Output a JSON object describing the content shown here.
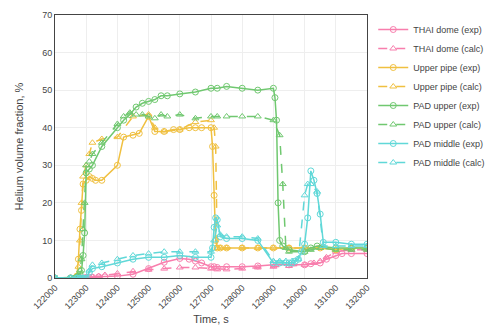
{
  "chart_data": {
    "type": "line",
    "xlabel": "Time, s",
    "ylabel": "Helium volume fraction, %",
    "xlim": [
      122000,
      132000
    ],
    "ylim": [
      0,
      70
    ],
    "xticks": [
      122000,
      123000,
      124000,
      125000,
      126000,
      127000,
      128000,
      129000,
      130000,
      131000,
      132000
    ],
    "yticks": [
      0,
      10,
      20,
      30,
      40,
      50,
      60,
      70
    ],
    "grid": true,
    "legend": "upper right",
    "series": [
      {
        "name": "THAI dome (exp)",
        "color": "#f87ead",
        "line_style": "solid",
        "marker": "circle",
        "x": [
          122000,
          122500,
          122700,
          122850,
          122950,
          123000,
          123100,
          123200,
          123400,
          123600,
          124000,
          124500,
          125000,
          125500,
          126000,
          126300,
          126500,
          126700,
          127000,
          127100,
          127200,
          127500,
          128000,
          128500,
          129000,
          129500,
          130000,
          130200,
          130500,
          130700,
          131000,
          131200,
          131500,
          132000
        ],
        "values": [
          0,
          0,
          0,
          0,
          0,
          0.1,
          0.15,
          0.2,
          0.3,
          0.3,
          0.5,
          1.0,
          2.5,
          4.2,
          5.2,
          5.0,
          4.5,
          4.0,
          3.0,
          3.0,
          2.8,
          3.0,
          3.0,
          3.2,
          3.5,
          3.5,
          3.5,
          3.8,
          4.0,
          5.0,
          6.0,
          6.5,
          6.5,
          6.5
        ]
      },
      {
        "name": "THAI dome (calc)",
        "color": "#f87ead",
        "line_style": "dashed",
        "marker": "triangle-up",
        "x": [
          122000,
          122500,
          122800,
          123000,
          123200,
          123400,
          123600,
          124000,
          124500,
          125000,
          125500,
          126000,
          126500,
          127000,
          127200,
          127500,
          128000,
          128500,
          129000,
          129500,
          130000,
          130300,
          130500,
          130700,
          131000,
          131500,
          132000
        ],
        "values": [
          0,
          0,
          0,
          0.1,
          0.3,
          0.5,
          0.8,
          1.2,
          1.8,
          2.2,
          2.5,
          2.8,
          2.8,
          2.5,
          2.3,
          2.3,
          2.5,
          2.8,
          3.0,
          3.2,
          3.5,
          4.0,
          4.5,
          5.5,
          7.0,
          7.5,
          7.5
        ]
      },
      {
        "name": "Upper pipe (exp)",
        "color": "#f0c040",
        "line_style": "solid",
        "marker": "circle",
        "x": [
          122000,
          122500,
          122650,
          122700,
          122750,
          122800,
          122850,
          122900,
          123000,
          123100,
          123200,
          123300,
          123500,
          124000,
          124200,
          124500,
          124700,
          125000,
          125200,
          125500,
          125800,
          126000,
          126300,
          126500,
          126700,
          127000,
          127050,
          127100,
          127150,
          127200,
          127300,
          127500,
          128000,
          128500,
          129000,
          129500,
          130000,
          130500,
          131000,
          131500,
          132000
        ],
        "values": [
          0,
          0,
          0,
          0.5,
          5.0,
          13.0,
          18.0,
          25.0,
          26.0,
          27.0,
          26.5,
          26.0,
          26.0,
          30.0,
          37.5,
          38.0,
          38.5,
          43.0,
          39.0,
          39.0,
          39.5,
          39.5,
          40.0,
          40.0,
          40.0,
          40.0,
          35.0,
          22.0,
          10.0,
          8.0,
          8.0,
          8.0,
          8.0,
          8.0,
          8.0,
          8.0,
          8.0,
          8.0,
          7.5,
          8.0,
          8.0
        ]
      },
      {
        "name": "Upper pipe (calc)",
        "color": "#f0c040",
        "line_style": "dashed",
        "marker": "triangle-up",
        "x": [
          122000,
          122500,
          122650,
          122700,
          122750,
          122800,
          122850,
          122900,
          123000,
          123100,
          123200,
          123500,
          124000,
          124500,
          125000,
          125200,
          125500,
          126000,
          126500,
          127000,
          127100,
          127150,
          127200,
          127300,
          127500,
          128000,
          128500,
          129000,
          129500,
          130000,
          130500,
          131000,
          131500,
          132000
        ],
        "values": [
          0,
          0,
          0,
          0.3,
          3.0,
          10.0,
          20.0,
          27.0,
          30.0,
          33.0,
          36.0,
          37.0,
          37.5,
          43.0,
          43.5,
          40.0,
          39.0,
          39.5,
          41.5,
          42.0,
          40.0,
          35.0,
          8.0,
          8.0,
          8.0,
          8.0,
          8.0,
          8.0,
          8.0,
          8.0,
          8.0,
          7.5,
          8.0,
          8.0
        ]
      },
      {
        "name": "PAD upper (exp)",
        "color": "#70c870",
        "line_style": "solid",
        "marker": "circle",
        "x": [
          122000,
          122500,
          122650,
          122700,
          122750,
          122800,
          122850,
          122900,
          122950,
          123000,
          123100,
          123200,
          123500,
          124000,
          124200,
          124400,
          124600,
          124800,
          125000,
          125200,
          125400,
          125600,
          126000,
          126500,
          127000,
          127200,
          127500,
          128000,
          128500,
          129000,
          129050,
          129100,
          129150,
          129200,
          129300,
          129500,
          130000,
          130200,
          130400,
          131000,
          131500,
          132000
        ],
        "values": [
          0,
          0,
          0,
          0.2,
          0.5,
          1.0,
          2.0,
          6.0,
          12.0,
          28.0,
          29.0,
          30.0,
          35.0,
          40.0,
          42.0,
          43.5,
          45.5,
          46.5,
          47.0,
          47.5,
          48.5,
          48.5,
          49.0,
          49.5,
          50.5,
          50.5,
          51.0,
          50.5,
          50.0,
          50.5,
          48.0,
          42.0,
          20.0,
          10.0,
          8.5,
          7.5,
          7.0,
          8.0,
          8.5,
          8.0,
          8.0,
          8.0
        ]
      },
      {
        "name": "PAD upper (calc)",
        "color": "#70c870",
        "line_style": "dashed",
        "marker": "triangle-up",
        "x": [
          122000,
          122500,
          122650,
          122700,
          122750,
          122800,
          122850,
          122900,
          122950,
          123000,
          123100,
          123200,
          123500,
          124000,
          124200,
          124400,
          124600,
          124800,
          125000,
          125200,
          125400,
          125600,
          126000,
          126500,
          127000,
          127200,
          127500,
          128000,
          128500,
          129000,
          129200,
          129300,
          129400,
          129500,
          130000,
          130200,
          130500,
          131000,
          131500,
          132000
        ],
        "values": [
          0,
          0,
          0,
          0.2,
          0.5,
          2.0,
          5.0,
          13.0,
          20.0,
          30.0,
          31.0,
          33.0,
          36.0,
          41.0,
          43.0,
          44.0,
          43.5,
          43.5,
          43.0,
          42.5,
          43.5,
          43.0,
          43.5,
          42.5,
          43.0,
          43.0,
          43.0,
          43.0,
          43.0,
          42.0,
          38.0,
          25.0,
          8.0,
          7.0,
          7.0,
          7.5,
          8.0,
          7.5,
          7.5,
          7.5
        ]
      },
      {
        "name": "PAD middle (exp)",
        "color": "#60d8d8",
        "line_style": "solid",
        "marker": "circle",
        "x": [
          122000,
          122500,
          122700,
          122800,
          122900,
          123000,
          123100,
          123200,
          123500,
          124000,
          124500,
          125000,
          125500,
          126000,
          126500,
          127000,
          127050,
          127100,
          127150,
          127200,
          127300,
          127500,
          128000,
          128500,
          129000,
          129200,
          129400,
          129500,
          129600,
          129700,
          129800,
          129900,
          130000,
          130100,
          130200,
          130300,
          130400,
          130500,
          130600,
          131000,
          131500,
          132000
        ],
        "values": [
          0,
          0,
          0,
          0,
          0,
          0,
          1.5,
          2.5,
          3.0,
          4.0,
          5.0,
          5.5,
          5.5,
          6.0,
          5.5,
          5.5,
          8.0,
          13.5,
          16.0,
          15.5,
          11.0,
          10.5,
          10.5,
          10.0,
          4.0,
          4.0,
          4.0,
          4.0,
          4.0,
          4.5,
          5.0,
          7.0,
          9.0,
          16.0,
          28.5,
          26.0,
          22.5,
          17.0,
          9.5,
          9.5,
          9.0,
          9.0
        ]
      },
      {
        "name": "PAD middle (calc)",
        "color": "#60d8d8",
        "line_style": "dashed",
        "marker": "triangle-up",
        "x": [
          122000,
          122500,
          122700,
          122800,
          122900,
          123000,
          123100,
          123200,
          123500,
          124000,
          124500,
          125000,
          125500,
          126000,
          126500,
          127000,
          127100,
          127200,
          127300,
          127500,
          128000,
          128500,
          129000,
          129200,
          129400,
          129600,
          129800,
          130000,
          130100,
          130200,
          130400,
          130600,
          131000,
          131500,
          132000
        ],
        "values": [
          0,
          0,
          0,
          0,
          0,
          0,
          2.0,
          3.5,
          4.0,
          5.0,
          6.0,
          6.5,
          7.0,
          7.0,
          7.0,
          7.0,
          10.0,
          14.0,
          11.5,
          11.0,
          11.0,
          10.5,
          4.5,
          4.5,
          4.5,
          4.5,
          5.0,
          22.0,
          25.0,
          25.0,
          23.0,
          8.5,
          8.5,
          8.5,
          8.5
        ]
      }
    ]
  }
}
